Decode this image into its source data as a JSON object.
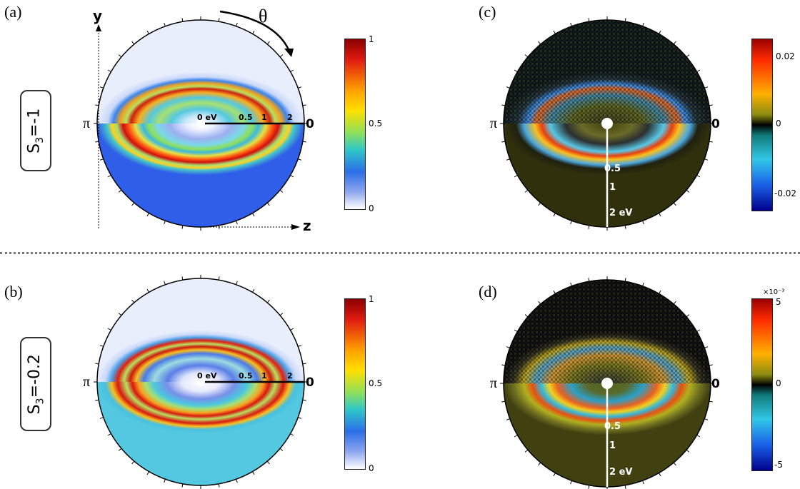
{
  "panels": {
    "a": {
      "label": "(a)",
      "pi": "π",
      "zero": "0",
      "y_axis": "y",
      "z_axis": "z",
      "theta": "θ",
      "radial_ticks": [
        "0 eV",
        "0.5",
        "1",
        "2"
      ]
    },
    "b": {
      "label": "(b)",
      "pi": "π",
      "zero": "0",
      "radial_ticks": [
        "0 eV",
        "0.5",
        "1",
        "2"
      ]
    },
    "c": {
      "label": "(c)",
      "pi": "π",
      "zero": "0",
      "radial_ticks": [
        "0.5",
        "1",
        "2 eV"
      ]
    },
    "d": {
      "label": "(d)",
      "pi": "π",
      "zero": "0",
      "radial_ticks": [
        "0.5",
        "1",
        "2 eV"
      ]
    }
  },
  "s3_labels": {
    "top": {
      "base": "S",
      "sub": "3",
      "rest": "=-1"
    },
    "bottom": {
      "base": "S",
      "sub": "3",
      "rest": "=-0.2"
    }
  },
  "colorbars": {
    "a": {
      "ticks": [
        "1",
        "0.5",
        "0"
      ]
    },
    "b": {
      "ticks": [
        "1",
        "0.5",
        "0"
      ]
    },
    "c": {
      "ticks": [
        "0.02",
        "0",
        "-0.02"
      ]
    },
    "d": {
      "ticks": [
        "5",
        "0",
        "-5"
      ],
      "exponent": "×10⁻³"
    }
  },
  "colors": {
    "jet_high": "#8b0000",
    "jet_mid": "#2ec8c8",
    "jet_low": "#ffffff",
    "divider": "#777777"
  },
  "chart_data": [
    {
      "type": "heatmap",
      "panel": "a",
      "projection": "polar",
      "scale_range": [
        0,
        1
      ],
      "radial_ticks": [
        "0 eV",
        "0.5",
        "1",
        "2"
      ],
      "angle_ticks": [
        "π",
        "0"
      ]
    },
    {
      "type": "heatmap",
      "panel": "b",
      "projection": "polar",
      "scale_range": [
        0,
        1
      ],
      "radial_ticks": [
        "0 eV",
        "0.5",
        "1",
        "2"
      ],
      "angle_ticks": [
        "π",
        "0"
      ]
    },
    {
      "type": "heatmap",
      "panel": "c",
      "projection": "polar",
      "scale_range": [
        -0.02,
        0.02
      ],
      "radial_ticks": [
        "0.5",
        "1",
        "2 eV"
      ],
      "angle_ticks": [
        "π",
        "0"
      ]
    },
    {
      "type": "heatmap",
      "panel": "d",
      "projection": "polar",
      "scale_range": [
        -5,
        5
      ],
      "scale_exponent": "×10⁻³",
      "radial_ticks": [
        "0.5",
        "1",
        "2 eV"
      ],
      "angle_ticks": [
        "π",
        "0"
      ]
    }
  ]
}
